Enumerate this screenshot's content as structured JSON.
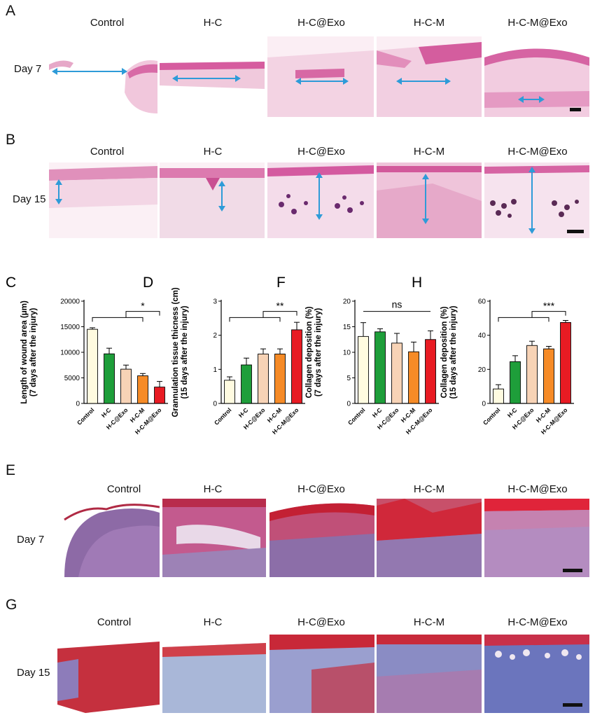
{
  "panels": {
    "A": {
      "letter": "A",
      "row_label": "Day 7",
      "groups": [
        "Control",
        "H-C",
        "H-C@Exo",
        "H-C-M",
        "H-C-M@Exo"
      ]
    },
    "B": {
      "letter": "B",
      "row_label": "Day 15",
      "groups": [
        "Control",
        "H-C",
        "H-C@Exo",
        "H-C-M",
        "H-C-M@Exo"
      ]
    },
    "E": {
      "letter": "E",
      "row_label": "Day 7",
      "groups": [
        "Control",
        "H-C",
        "H-C@Exo",
        "H-C-M",
        "H-C-M@Exo"
      ]
    },
    "G": {
      "letter": "G",
      "row_label": "Day 15",
      "groups": [
        "Control",
        "H-C",
        "H-C@Exo",
        "H-C-M",
        "H-C-M@Exo"
      ]
    }
  },
  "stain_colors": {
    "he": "#f3cde0",
    "he_dark": "#d8609e",
    "masson_red": "#c0303a",
    "masson_blue": "#7d86c4",
    "arrow": "#2e9bd8"
  },
  "chart_data": [
    {
      "letter": "C",
      "type": "bar",
      "categories": [
        "Control",
        "H-C",
        "H-C@Exo",
        "H-C-M",
        "H-C-M@Exo"
      ],
      "values": [
        14500,
        9700,
        6700,
        5400,
        3200
      ],
      "errors": [
        300,
        1100,
        800,
        450,
        1100
      ],
      "ylabel": "Length of wound area (μm)",
      "ylabel2": "(7 days after the injury)",
      "ylim": [
        0,
        20000
      ],
      "ticks": [
        "0",
        "5000",
        "10000",
        "15000",
        "20000"
      ],
      "ticks_num": [
        0,
        5000,
        10000,
        15000,
        20000
      ],
      "sig": "*"
    },
    {
      "letter": "D",
      "type": "bar",
      "categories": [
        "Control",
        "H-C",
        "H-C@Exo",
        "H-C-M",
        "H-C-M@Exo"
      ],
      "values": [
        0.68,
        1.13,
        1.45,
        1.45,
        2.16
      ],
      "errors": [
        0.1,
        0.2,
        0.15,
        0.15,
        0.22
      ],
      "ylabel": "Grannulation tissue thicness (cm)",
      "ylabel2": "(15 days after the injury)",
      "ylim": [
        0,
        3
      ],
      "ticks": [
        "0",
        "1",
        "2",
        "3"
      ],
      "ticks_num": [
        0,
        1,
        2,
        3
      ],
      "sig": "**"
    },
    {
      "letter": "F",
      "type": "bar",
      "categories": [
        "Control",
        "H-C",
        "H-C@Exo",
        "H-C-M",
        "H-C-M@Exo"
      ],
      "values": [
        13.1,
        14.0,
        11.8,
        10.1,
        12.5
      ],
      "errors": [
        2.7,
        0.6,
        1.9,
        1.9,
        1.7
      ],
      "ylabel": "Collagen deposition (%)",
      "ylabel2": "(7 days after the injury)",
      "ylim": [
        0,
        20
      ],
      "ticks": [
        "0",
        "5",
        "10",
        "15",
        "20"
      ],
      "ticks_num": [
        0,
        5,
        10,
        15,
        20
      ],
      "sig": "ns"
    },
    {
      "letter": "H",
      "type": "bar",
      "categories": [
        "Control",
        "H-C",
        "H-C@Exo",
        "H-C-M",
        "H-C-M@Exo"
      ],
      "values": [
        8.5,
        24.5,
        34.0,
        32.0,
        47.5
      ],
      "errors": [
        2.5,
        3.5,
        2.5,
        1.5,
        1.2
      ],
      "ylabel": "Collagen deposition (%)",
      "ylabel2": "(15 days after the injury)",
      "ylim": [
        0,
        60
      ],
      "ticks": [
        "0",
        "20",
        "40",
        "60"
      ],
      "ticks_num": [
        0,
        20,
        40,
        60
      ],
      "sig": "***"
    }
  ],
  "bar_colors": [
    "#fffbe0",
    "#1e9e3a",
    "#f7d3b6",
    "#f68b27",
    "#e81b23"
  ]
}
